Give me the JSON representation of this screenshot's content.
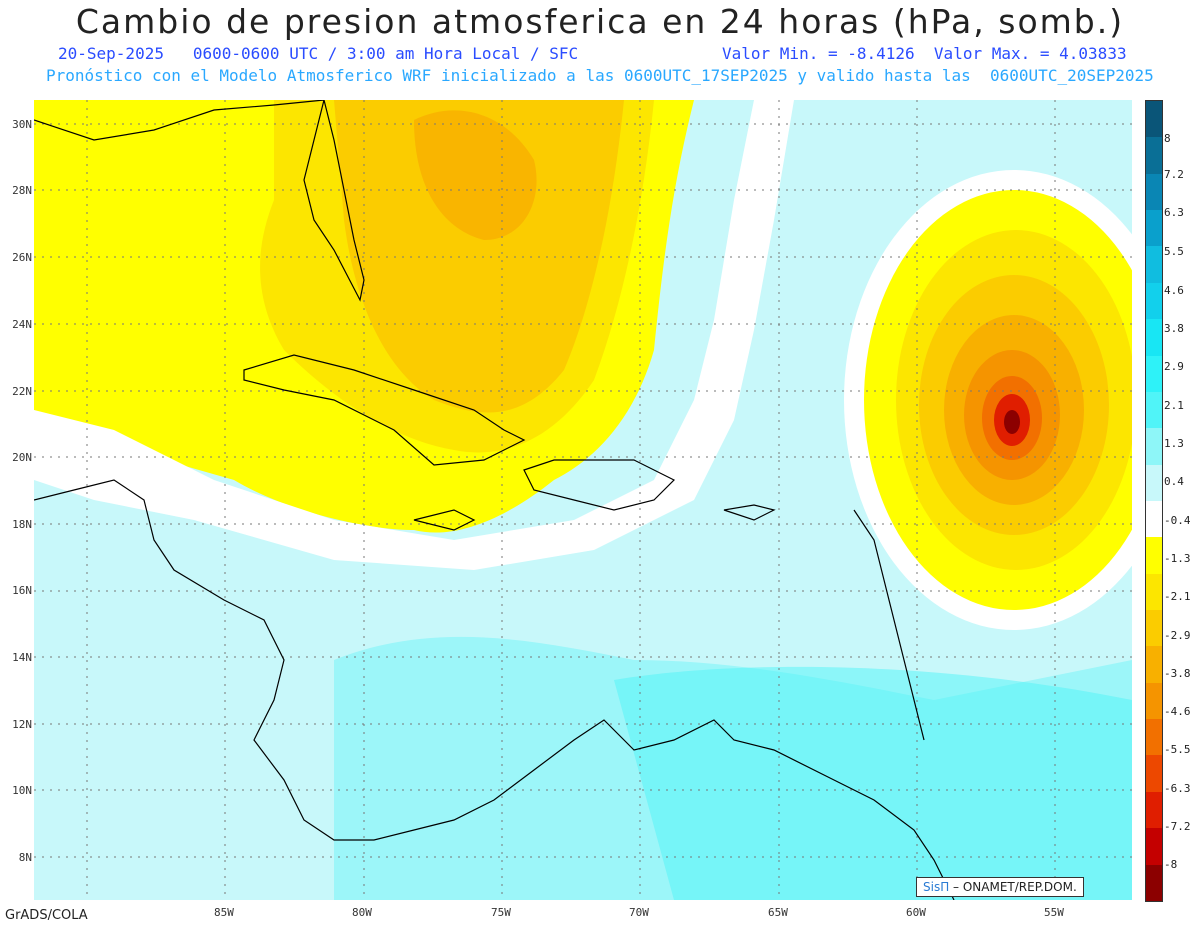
{
  "title": "Cambio de presion atmosferica en 24 horas (hPa, somb.)",
  "subtitle_left": "20-Sep-2025   0600-0600 UTC / 3:00 am Hora Local / SFC",
  "subtitle_right": "Valor Min. = -8.4126  Valor Max. = 4.03833",
  "subtitle2": "Pronóstico con el Modelo Atmosferico WRF inicializado a las 0600UTC_17SEP2025 y valido hasta las  0600UTC_20SEP2025",
  "lat_labels": [
    "30N",
    "28N",
    "26N",
    "24N",
    "22N",
    "20N",
    "18N",
    "16N",
    "14N",
    "12N",
    "10N",
    "8N"
  ],
  "lon_labels": [
    "85W",
    "80W",
    "75W",
    "70W",
    "65W",
    "60W",
    "55W"
  ],
  "colorbar_ticks": [
    "8",
    "7.2",
    "6.3",
    "5.5",
    "4.6",
    "3.8",
    "2.9",
    "2.1",
    "1.3",
    "0.4",
    "-0.4",
    "-1.3",
    "-2.1",
    "-2.9",
    "-3.8",
    "-4.6",
    "-5.5",
    "-6.3",
    "-7.2",
    "-8"
  ],
  "colorbar_colors": [
    "#0a5578",
    "#0a6f96",
    "#0a86b4",
    "#0aa0cc",
    "#10bde0",
    "#12d0ec",
    "#18e6f4",
    "#2ef2f8",
    "#50f4f8",
    "#8ef6f8",
    "#c8f8fa",
    "#ffffff",
    "#ffff00",
    "#fce600",
    "#fbcc00",
    "#f8b000",
    "#f59400",
    "#f27000",
    "#ed4800",
    "#e01e00",
    "#c40000",
    "#8c0000"
  ],
  "credit": "GrADS/COLA",
  "stamp_brand": "SisΠ",
  "stamp_org": " – ONAMET/REP.DOM."
}
